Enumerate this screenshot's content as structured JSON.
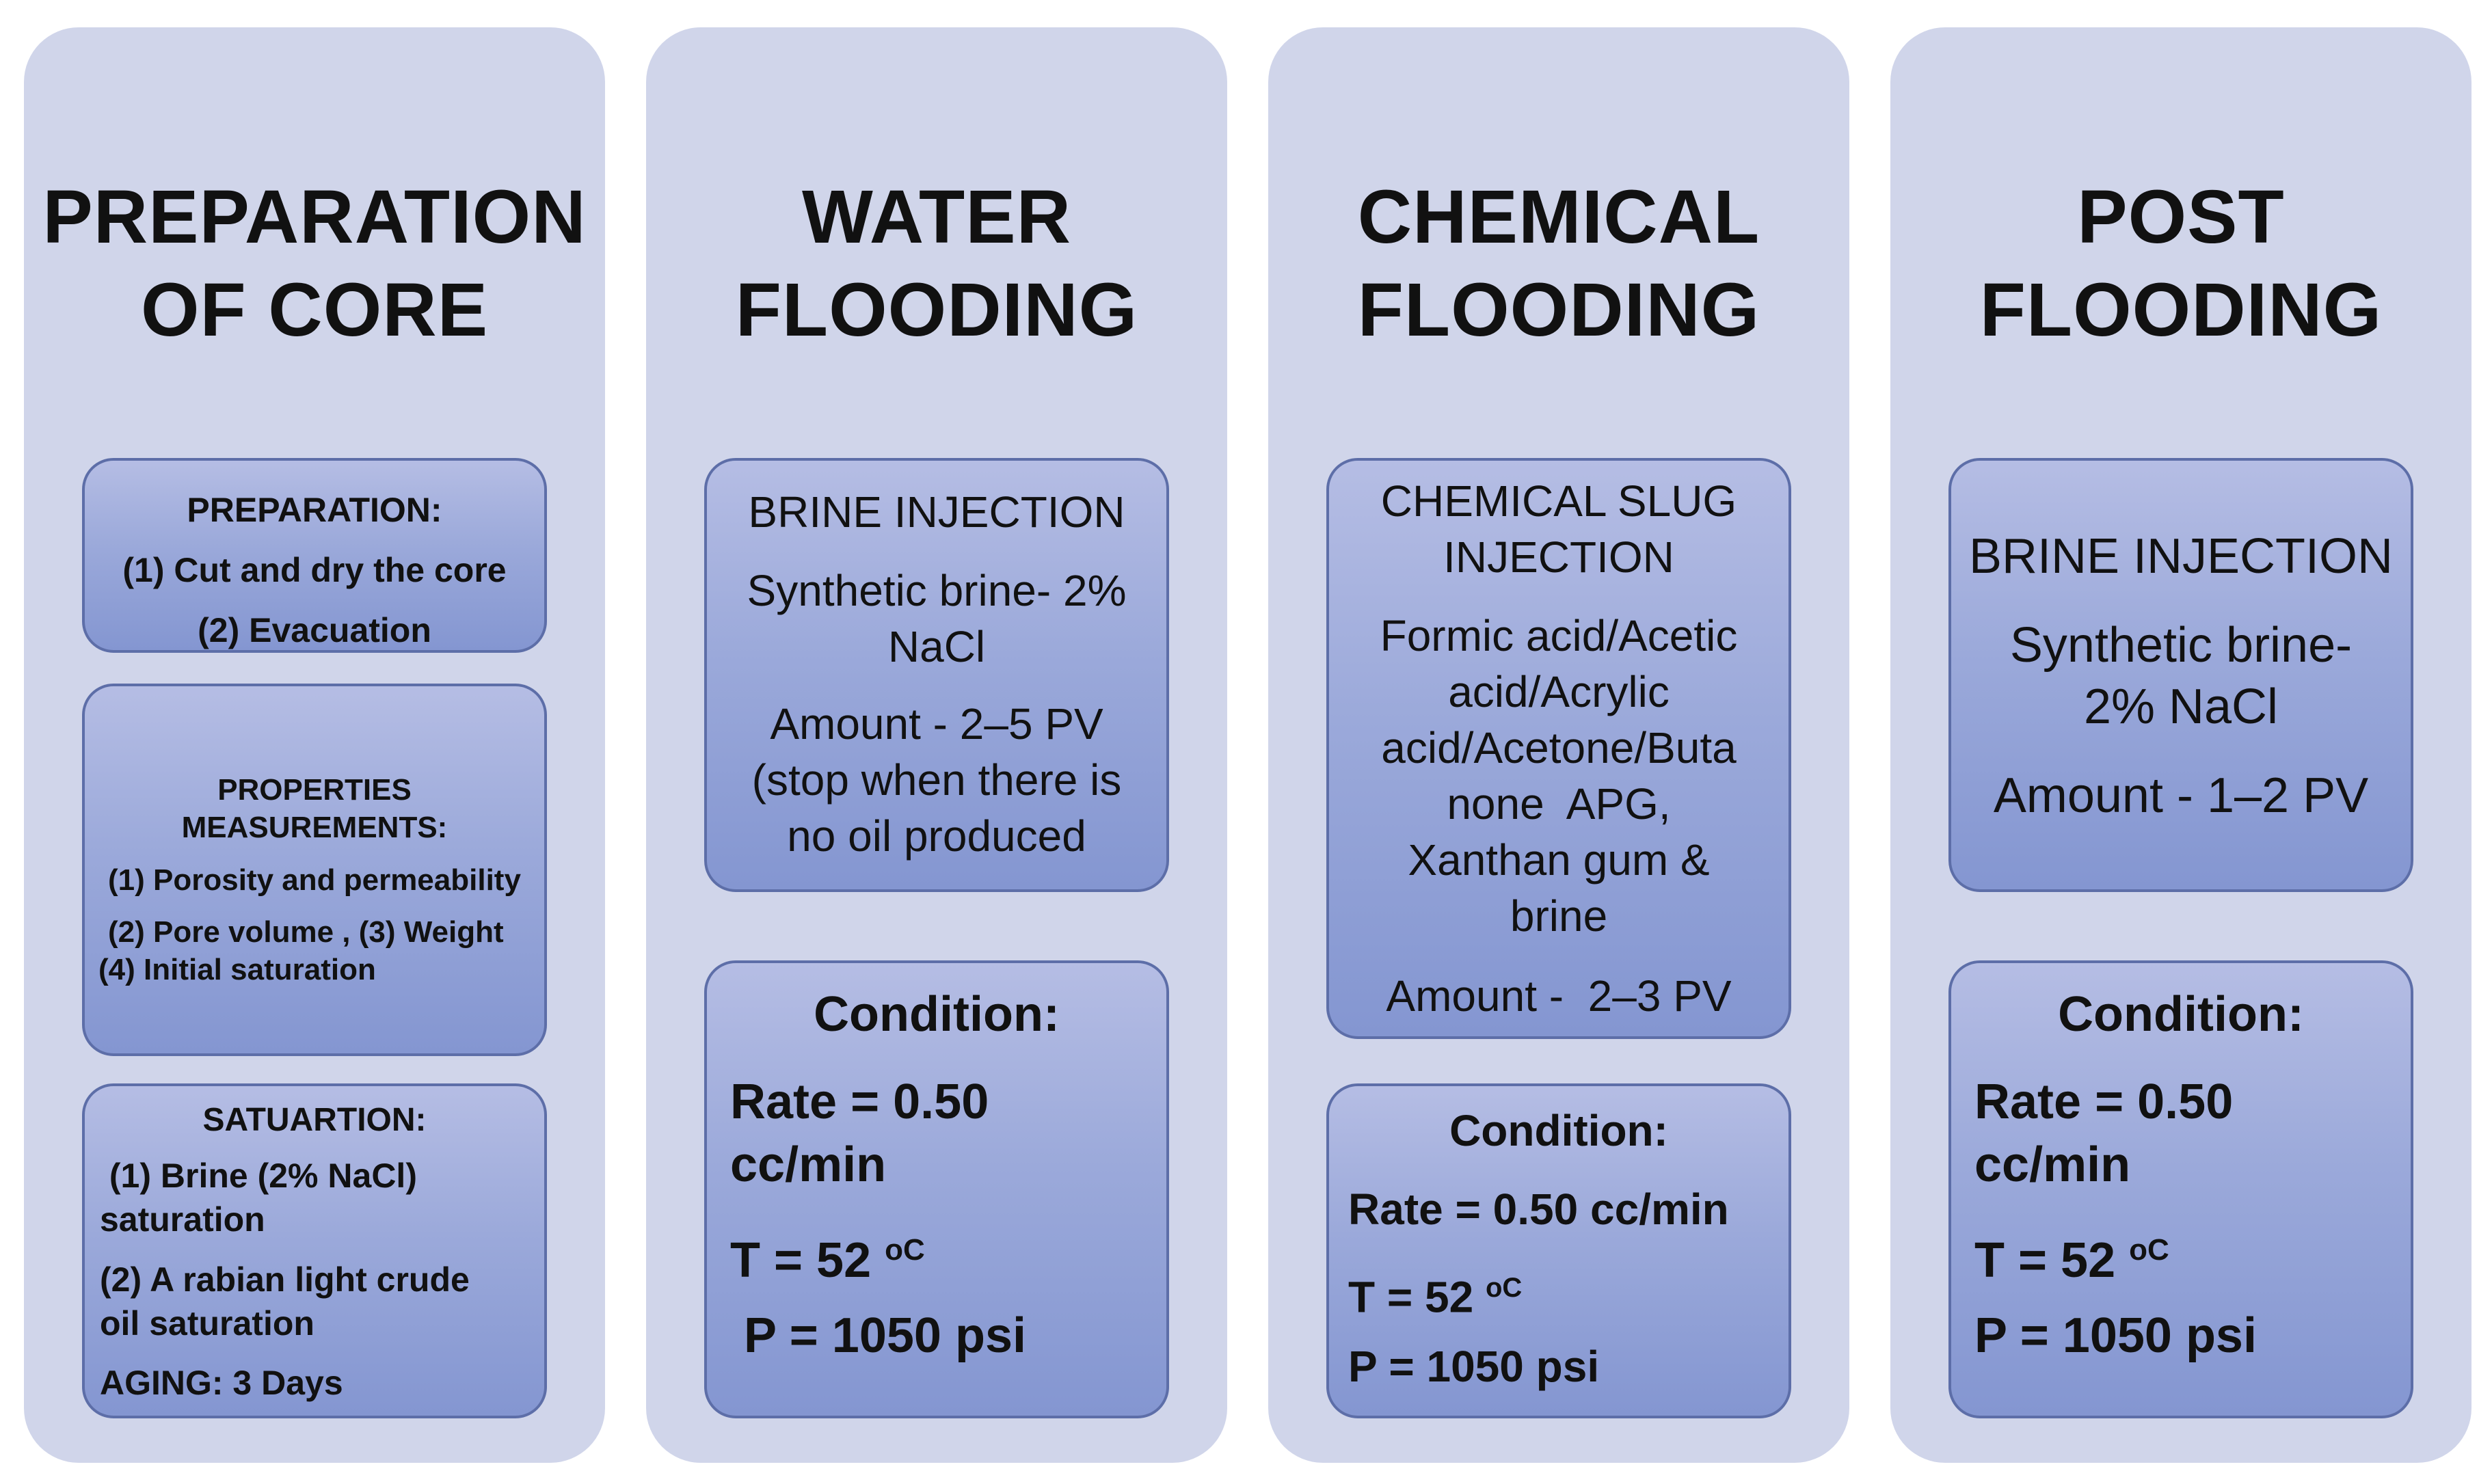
{
  "columns": [
    {
      "title_line1": "PREPARATION",
      "title_line2": "OF CORE",
      "boxes": [
        {
          "heading": "PREPARATION:",
          "lines": [
            "(1) Cut and dry the core",
            "(2) Evacuation"
          ]
        },
        {
          "heading_line1": "PROPERTIES",
          "heading_line2": "MEASUREMENTS:",
          "lines": [
            "(1) Porosity and permeability",
            "(2) Pore volume , (3) Weight",
            "(4) Initial saturation"
          ]
        },
        {
          "heading": "SATUARTION:",
          "lines": [
            " (1) Brine (2% NaCl)",
            "saturation",
            "(2) A rabian light crude",
            "oil saturation",
            "AGING: 3 Days"
          ]
        }
      ]
    },
    {
      "title_line1": "WATER",
      "title_line2": "FLOODING",
      "boxes": [
        {
          "heading": "BRINE INJECTION",
          "lines": [
            "Synthetic brine- 2%",
            "NaCl",
            "Amount - 2–5 PV",
            "(stop when there is",
            "no oil produced"
          ]
        },
        {
          "heading": "Condition:",
          "lines": [
            "Rate = 0.50",
            "cc/min",
            "T = 52 ",
            "oC",
            " P = 1050 psi"
          ]
        }
      ]
    },
    {
      "title_line1": "CHEMICAL",
      "title_line2": "FLOODING",
      "boxes": [
        {
          "heading_line1": "CHEMICAL SLUG",
          "heading_line2": "INJECTION",
          "lines": [
            "Formic acid/Acetic",
            "acid/Acrylic",
            "acid/Acetone/Buta",
            "none  APG,",
            "Xanthan gum &",
            "brine",
            "Amount -  2–3 PV"
          ]
        },
        {
          "heading": "Condition:",
          "lines": [
            "Rate = 0.50 cc/min",
            "T = 52 ",
            "oC",
            "P = 1050 psi"
          ]
        }
      ]
    },
    {
      "title_line1": "POST",
      "title_line2": "FLOODING",
      "boxes": [
        {
          "heading": "BRINE INJECTION",
          "lines": [
            "Synthetic brine-",
            "2% NaCl",
            "Amount - 1–2 PV"
          ]
        },
        {
          "heading": "Condition:",
          "lines": [
            "Rate = 0.50",
            "cc/min",
            "T = 52 ",
            "oC",
            "P = 1050 psi"
          ]
        }
      ]
    }
  ]
}
